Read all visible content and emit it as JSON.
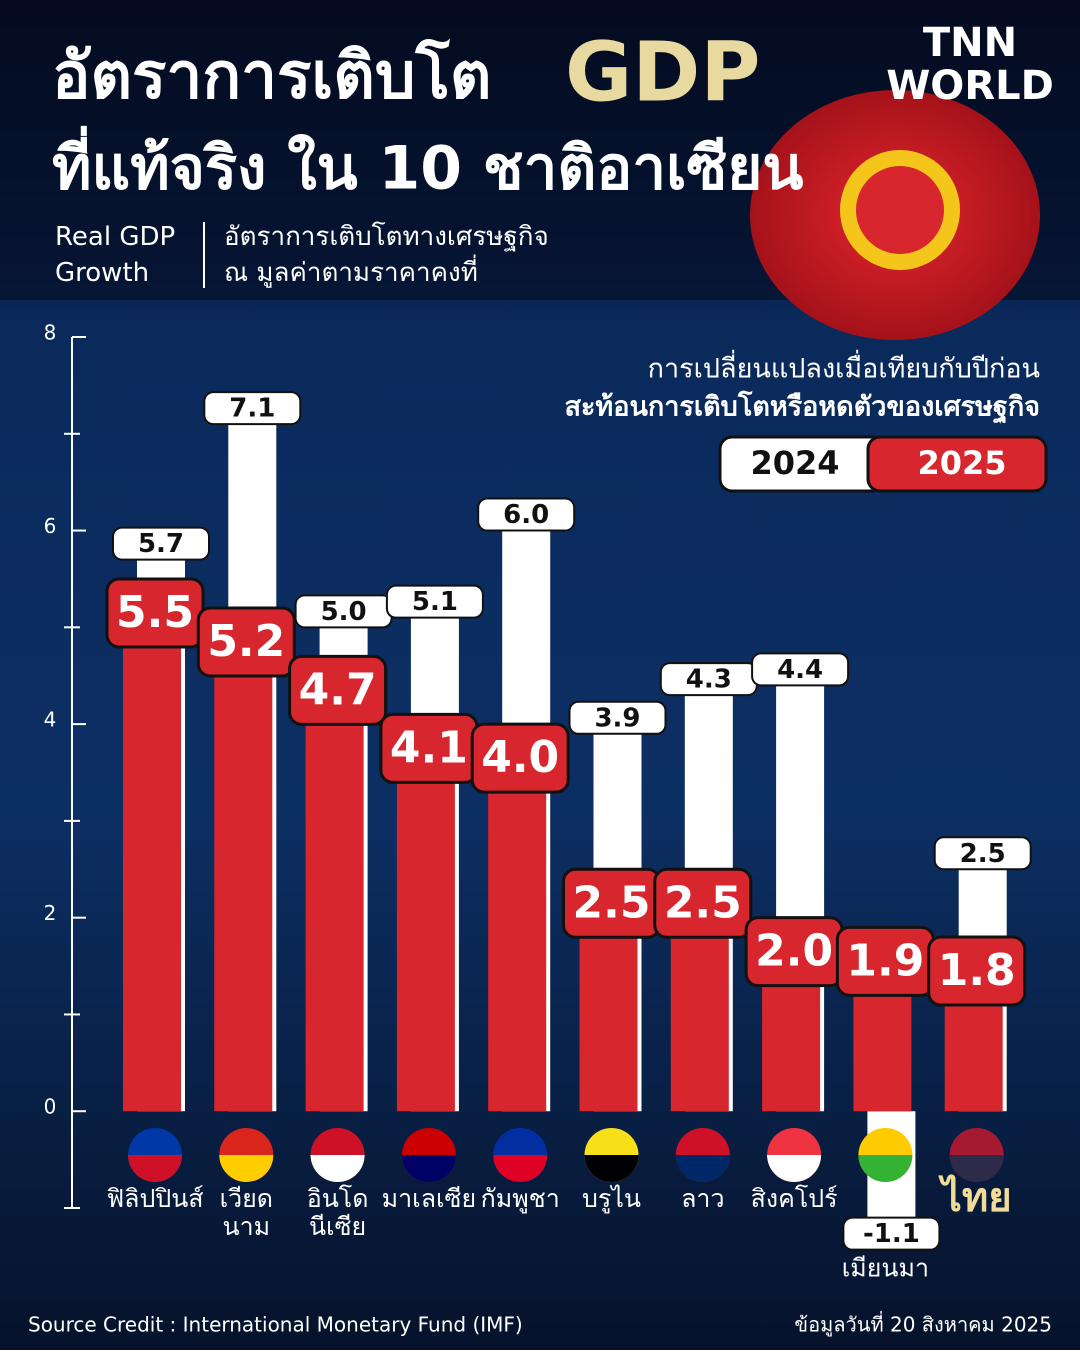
{
  "logo": {
    "line1": "TNN",
    "line2": "WORLD"
  },
  "chart_data": {
    "type": "bar",
    "title": "อัตราการเติบโต",
    "title_highlight": "GDP",
    "title_line2": "ที่แท้จริง ใน 10 ชาติอาเซียน",
    "subtitle_en": "Real GDP\nGrowth",
    "subtitle_th": "อัตราการเติบโตทางเศรษฐกิจ\nณ มูลค่าตามราคาคงที่",
    "note": "การเปลี่ยนแปลงเมื่อเทียบกับปีก่อน",
    "note_bold": "สะท้อนการเติบโตหรือหดตัวของเศรษฐกิจ",
    "categories": [
      "ฟิลิปปินส์",
      "เวียด\nนาม",
      "อินโด\nนีเซีย",
      "มาเลเซีย",
      "กัมพูชา",
      "บรูไน",
      "ลาว",
      "สิงคโปร์",
      "เมียนมา",
      "ไทย"
    ],
    "series": [
      {
        "name": "2024",
        "color": "#ffffff",
        "values": [
          5.7,
          7.1,
          5.0,
          5.1,
          6.0,
          3.9,
          4.3,
          4.4,
          -1.1,
          2.5
        ],
        "value_labels": [
          "5.7",
          "7.1",
          "5.0",
          "5.1",
          "6.0",
          "3.9",
          "4.3",
          "4.4",
          "-1.1",
          "2.5"
        ]
      },
      {
        "name": "2025",
        "color": "#d7262d",
        "values": [
          5.5,
          5.2,
          4.7,
          4.1,
          4.0,
          2.5,
          2.5,
          2.0,
          1.9,
          1.8
        ],
        "value_labels": [
          "5.5",
          "5.2",
          "4.7",
          "4.1",
          "4.0",
          "2.5",
          "2.5",
          "2.0",
          "1.9",
          "1.8"
        ]
      }
    ],
    "ylim": [
      -1,
      8
    ],
    "yticks": [
      0,
      2,
      4,
      6,
      8
    ],
    "minor_yticks": [
      -1,
      1,
      3,
      5,
      7
    ],
    "source": "Source Credit : International Monetary Fund (IMF)",
    "date_note": "ข้อมูลวันที่ 20 สิงหาคม 2025"
  }
}
